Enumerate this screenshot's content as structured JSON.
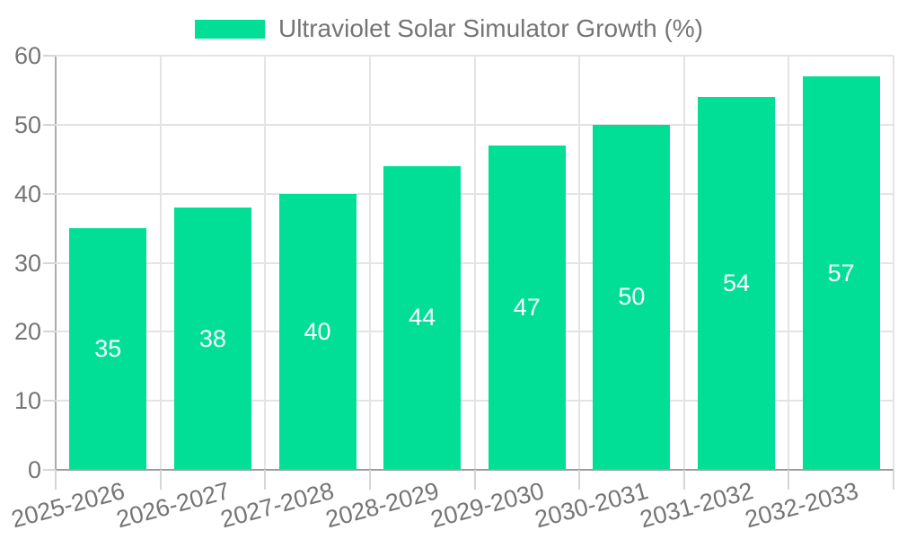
{
  "colors": {
    "bar": "#00DF95",
    "grid": "#e4e4e4",
    "axis_x": "#9e9e9e",
    "axis_y": "#ababab",
    "tick": "#d6d6d6",
    "text": "#757575",
    "value_label": "#ffffff",
    "background": "#ffffff"
  },
  "chart_data": {
    "type": "bar",
    "title": "Ultraviolet Solar Simulator Growth (%)",
    "categories": [
      "2025-2026",
      "2026-2027",
      "2027-2028",
      "2028-2029",
      "2029-2030",
      "2030-2031",
      "2031-2032",
      "2032-2033"
    ],
    "values": [
      35,
      38,
      40,
      44,
      47,
      50,
      54,
      57
    ],
    "xlabel": "",
    "ylabel": "",
    "ylim": [
      0,
      60
    ],
    "yticks": [
      0,
      10,
      20,
      30,
      40,
      50,
      60
    ],
    "grid": true,
    "legend_position": "top",
    "value_labels_inside_bars": true,
    "x_label_rotation_deg": -15
  }
}
